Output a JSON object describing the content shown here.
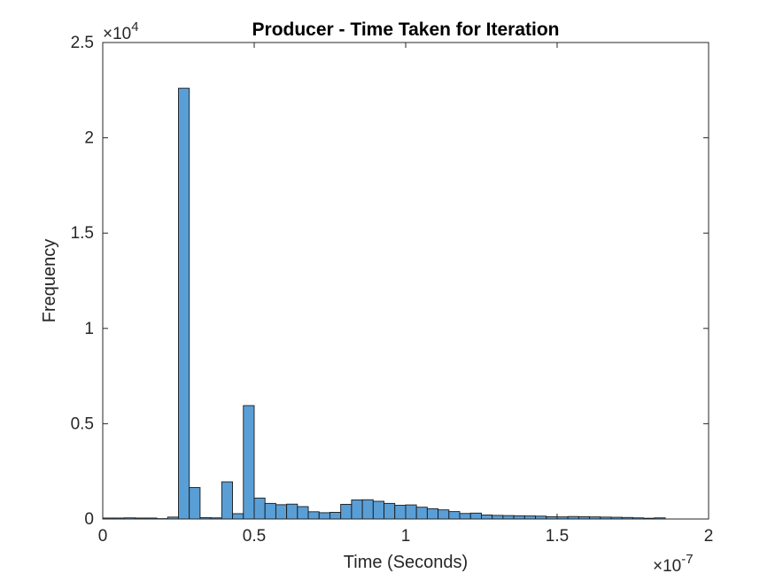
{
  "chart_data": {
    "type": "bar",
    "title": "Producer - Time Taken for Iteration",
    "xlabel": "Time (Seconds)",
    "ylabel": "Frequency",
    "xlim": [
      0,
      2e-07
    ],
    "ylim": [
      0,
      25000
    ],
    "x_ticks": [
      0,
      0.5,
      1,
      1.5,
      2
    ],
    "x_tick_labels": [
      "0",
      "0.5",
      "1",
      "1.5",
      "2"
    ],
    "y_ticks": [
      0,
      0.5,
      1,
      1.5,
      2,
      2.5
    ],
    "y_tick_labels": [
      "0",
      "0.5",
      "1",
      "1.5",
      "2",
      "2.5"
    ],
    "x_exponent_label": "×10",
    "x_exponent": "-7",
    "y_exponent_label": "×10",
    "y_exponent": "4",
    "bin_edges_start": 0,
    "bin_width": 3.571e-09,
    "counts": [
      50,
      50,
      60,
      50,
      50,
      20,
      100,
      22600,
      1650,
      70,
      60,
      1950,
      280,
      5950,
      1100,
      820,
      750,
      780,
      650,
      380,
      330,
      350,
      770,
      1000,
      1010,
      930,
      820,
      720,
      740,
      620,
      540,
      480,
      390,
      290,
      310,
      210,
      190,
      180,
      170,
      160,
      150,
      120,
      110,
      130,
      120,
      110,
      100,
      90,
      80,
      60,
      40,
      60
    ],
    "bar_color": "#5a9ed6",
    "edge_color": "#1a1a1a",
    "grid": false,
    "box": true
  }
}
